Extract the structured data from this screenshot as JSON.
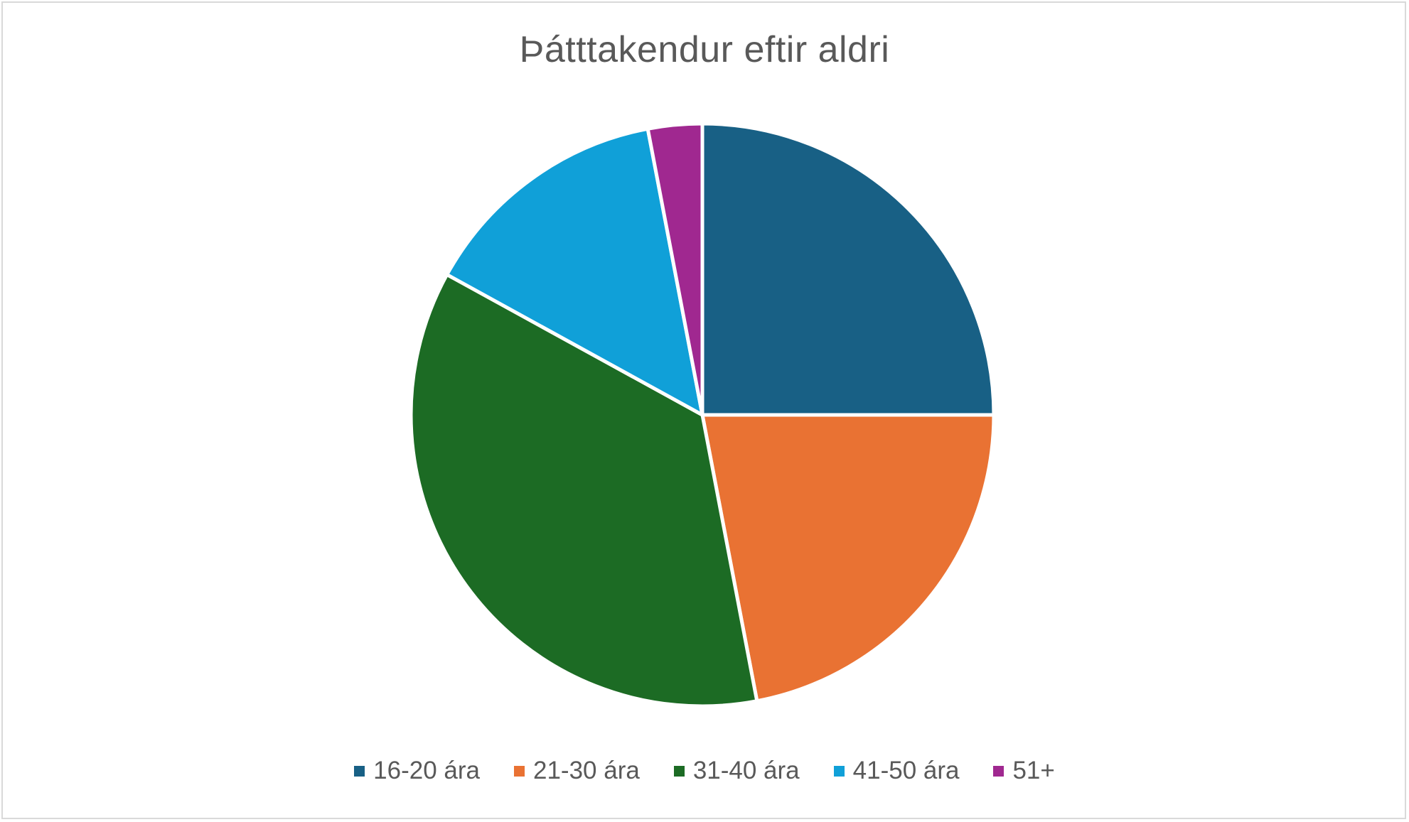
{
  "chart_data": {
    "type": "pie",
    "title": "Þátttakendur eftir aldri",
    "categories": [
      "16-20 ára",
      "21-30 ára",
      "31-40 ára",
      "41-50 ára",
      "51+"
    ],
    "values": [
      25,
      22,
      36,
      14,
      3
    ],
    "colors": [
      "#186085",
      "#e97233",
      "#1c6b24",
      "#10a0d8",
      "#a02890"
    ],
    "legend_position": "bottom",
    "start_angle": "12 o'clock",
    "direction": "clockwise"
  }
}
